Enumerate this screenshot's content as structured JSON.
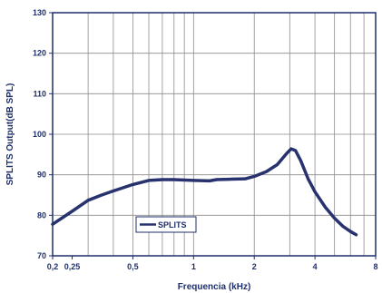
{
  "chart_data": {
    "type": "line",
    "xscale": "log",
    "xlabel": "Frequencia (kHz)",
    "ylabel": "SPLITS Output(dB SPL)",
    "xlim": [
      0.2,
      8
    ],
    "ylim": [
      70,
      130
    ],
    "x_ticks": [
      0.2,
      0.25,
      0.5,
      1,
      2,
      4,
      8
    ],
    "x_tick_labels": [
      "0,2",
      "0,25",
      "0,5",
      "1",
      "2",
      "4",
      "8"
    ],
    "y_ticks": [
      70,
      80,
      90,
      100,
      110,
      120,
      130
    ],
    "y_tick_labels": [
      "70",
      "80",
      "90",
      "100",
      "110",
      "120",
      "130"
    ],
    "grid": true,
    "legend_position": "bottom-left inside plot",
    "series": [
      {
        "name": "SPLITS",
        "color": "#27326e",
        "points": [
          [
            0.2,
            77.8
          ],
          [
            0.25,
            81.0
          ],
          [
            0.3,
            83.7
          ],
          [
            0.35,
            85.0
          ],
          [
            0.4,
            86.0
          ],
          [
            0.5,
            87.6
          ],
          [
            0.6,
            88.6
          ],
          [
            0.7,
            88.8
          ],
          [
            0.8,
            88.8
          ],
          [
            1.0,
            88.6
          ],
          [
            1.2,
            88.5
          ],
          [
            1.3,
            88.8
          ],
          [
            1.5,
            88.9
          ],
          [
            1.8,
            89.0
          ],
          [
            2.0,
            89.6
          ],
          [
            2.3,
            90.8
          ],
          [
            2.6,
            92.5
          ],
          [
            2.9,
            95.3
          ],
          [
            3.05,
            96.4
          ],
          [
            3.2,
            96.0
          ],
          [
            3.4,
            93.5
          ],
          [
            3.7,
            89.0
          ],
          [
            4.0,
            85.8
          ],
          [
            4.5,
            82.0
          ],
          [
            5.0,
            79.3
          ],
          [
            5.5,
            77.3
          ],
          [
            6.0,
            76.0
          ],
          [
            6.4,
            75.2
          ]
        ]
      }
    ],
    "legend": [
      "SPLITS"
    ]
  }
}
